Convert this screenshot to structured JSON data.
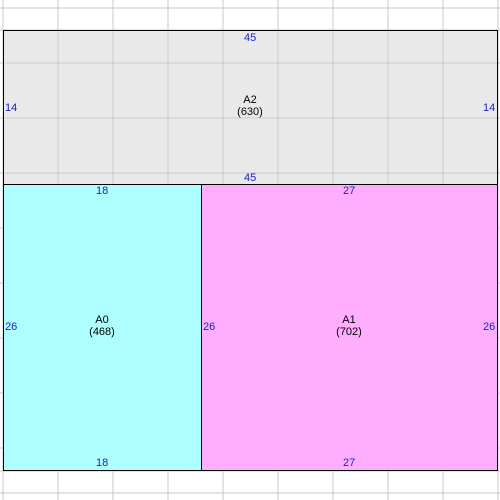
{
  "colors": {
    "grid_line": "#c8c8c8",
    "dimension_text": "#2020cc",
    "border": "#000000"
  },
  "regions": [
    {
      "id": "A2",
      "name": "A2",
      "area": "(630)",
      "fill": "#e9e9e9",
      "dims": {
        "top": "45",
        "bottom": "45",
        "left": "14",
        "right": "14"
      }
    },
    {
      "id": "A0",
      "name": "A0",
      "area": "(468)",
      "fill": "#aeffff",
      "dims": {
        "top": "18",
        "bottom": "18",
        "left": "26",
        "right": "26"
      }
    },
    {
      "id": "A1",
      "name": "A1",
      "area": "(702)",
      "fill": "#ffaeff",
      "dims": {
        "top": "27",
        "bottom": "27",
        "left": "26",
        "right": "26"
      }
    }
  ]
}
